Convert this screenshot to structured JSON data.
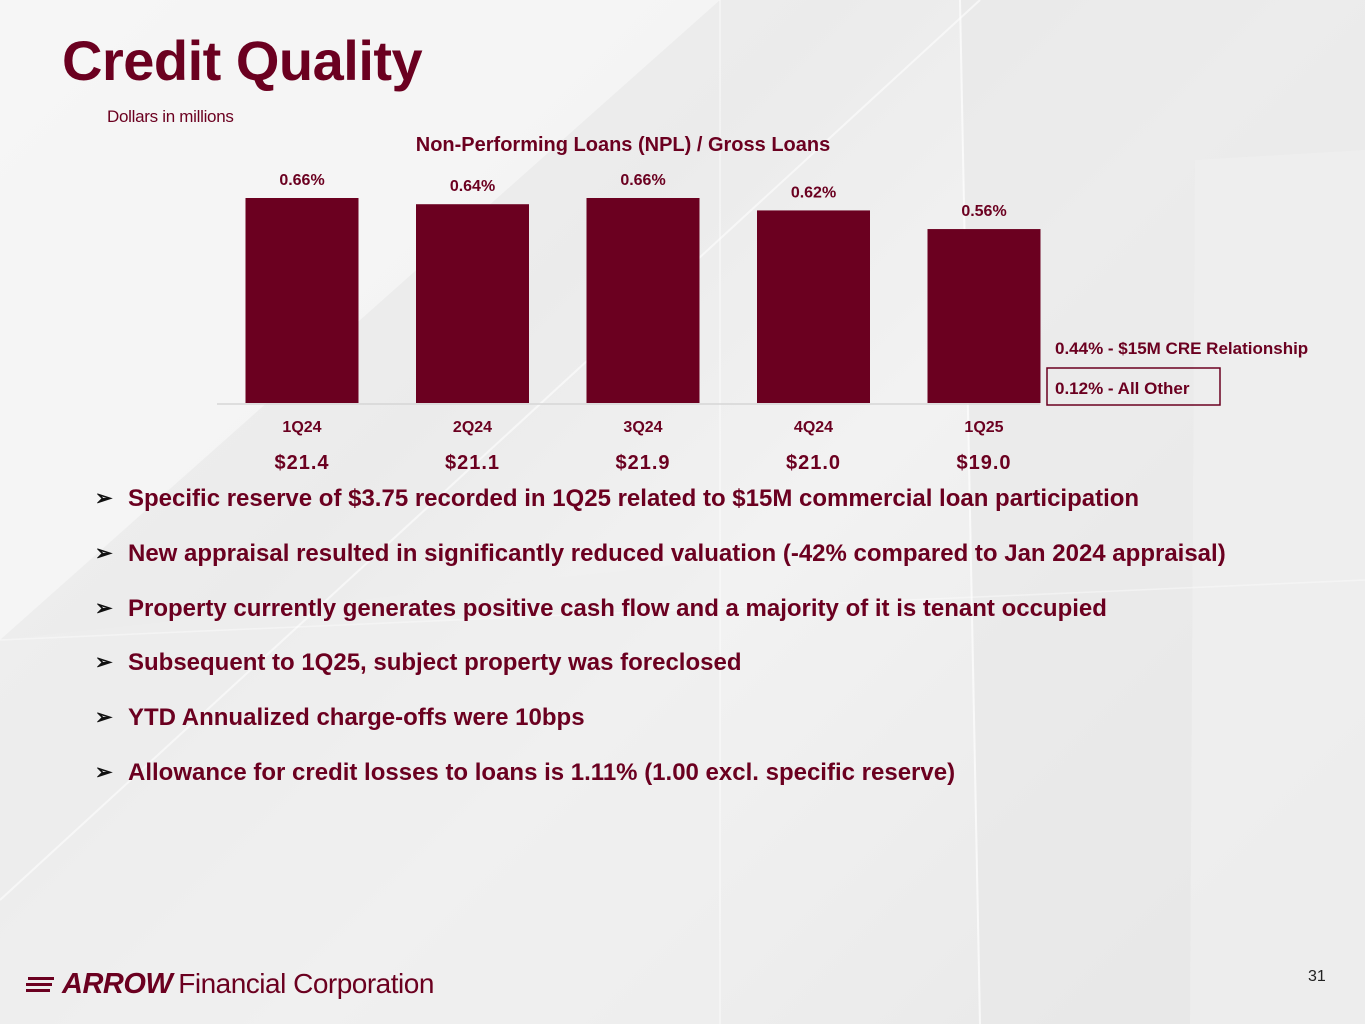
{
  "title": "Credit Quality",
  "subtitle": "Dollars in millions",
  "chart_data": {
    "type": "bar",
    "title": "Non-Performing Loans (NPL) / Gross Loans",
    "categories": [
      "1Q24",
      "2Q24",
      "3Q24",
      "4Q24",
      "1Q25"
    ],
    "values": [
      0.66,
      0.64,
      0.66,
      0.62,
      0.56
    ],
    "value_labels": [
      "0.66%",
      "0.64%",
      "0.66%",
      "0.62%",
      "0.56%"
    ],
    "npl_dollars": [
      "$21.4",
      "$21.1",
      "$21.9",
      "$21.0",
      "$19.0"
    ],
    "breakdown": {
      "category": "1Q25",
      "segments": [
        {
          "name": "$15M CRE Relationship",
          "value": 0.44,
          "label": "0.44% - $15M CRE Relationship"
        },
        {
          "name": "All Other",
          "value": 0.12,
          "label": "0.12% - All Other"
        }
      ]
    },
    "ylabel": "",
    "xlabel": "",
    "bar_color": "#6b0020"
  },
  "bullets": [
    "Specific reserve of $3.75 recorded in 1Q25 related to $15M commercial loan participation",
    "New appraisal resulted in significantly reduced valuation (-42% compared to Jan 2024 appraisal)",
    "Property currently generates positive cash flow and a majority of it is tenant occupied",
    "Subsequent to 1Q25, subject property was foreclosed",
    "YTD Annualized charge-offs were 10bps",
    "Allowance for credit losses to loans is 1.11% (1.00 excl. specific reserve)"
  ],
  "bullet_symbol": "➢",
  "footer": {
    "logo_strong": "ARROW",
    "logo_light": "Financial Corporation",
    "page_number": "31"
  },
  "colors": {
    "brand": "#6b0020"
  }
}
